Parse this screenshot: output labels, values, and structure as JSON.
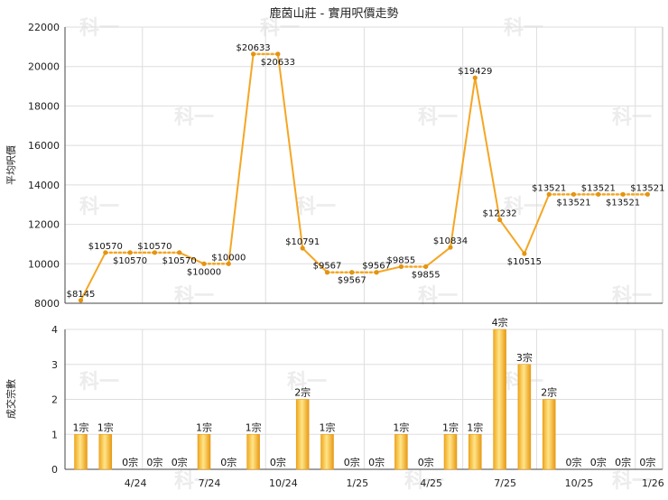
{
  "chart_data": [
    {
      "type": "line",
      "title": "鹿茵山莊 - 實用呎價走勢",
      "ylabel": "平均呎價",
      "ylim": [
        8000,
        22000
      ],
      "yticks": [
        8000,
        10000,
        12000,
        14000,
        16000,
        18000,
        20000,
        22000
      ],
      "x_tick_labels": [
        "4/24",
        "7/24",
        "10/24",
        "1/25",
        "4/25",
        "7/25",
        "10/25",
        "1/26"
      ],
      "grid": true,
      "line_color": "#f5a623",
      "points": [
        {
          "y": 8145,
          "label": "$8145"
        },
        {
          "y": 10570,
          "label": "$10570"
        },
        {
          "y": 10570,
          "label": "$10570"
        },
        {
          "y": 10570,
          "label": "$10570"
        },
        {
          "y": 10570,
          "label": "$10570"
        },
        {
          "y": 10000,
          "label": "$10000"
        },
        {
          "y": 10000,
          "label": "$10000"
        },
        {
          "y": 20633,
          "label": "$20633"
        },
        {
          "y": 20633,
          "label": "$20633"
        },
        {
          "y": 10791,
          "label": "$10791"
        },
        {
          "y": 9567,
          "label": "$9567"
        },
        {
          "y": 9567,
          "label": "$9567"
        },
        {
          "y": 9567,
          "label": "$9567"
        },
        {
          "y": 9855,
          "label": "$9855"
        },
        {
          "y": 9855,
          "label": "$9855"
        },
        {
          "y": 10834,
          "label": "$10834"
        },
        {
          "y": 19429,
          "label": "$19429"
        },
        {
          "y": 12232,
          "label": "$12232"
        },
        {
          "y": 10515,
          "label": "$10515"
        },
        {
          "y": 13521,
          "label": "$13521"
        },
        {
          "y": 13521,
          "label": "$13521"
        },
        {
          "y": 13521,
          "label": "$13521"
        },
        {
          "y": 13521,
          "label": "$13521"
        },
        {
          "y": 13521,
          "label": "$13521"
        }
      ]
    },
    {
      "type": "bar",
      "ylabel": "成交宗數",
      "ylim": [
        0,
        4
      ],
      "yticks": [
        0,
        1,
        2,
        3,
        4
      ],
      "x_tick_labels": [
        "4/24",
        "7/24",
        "10/24",
        "1/25",
        "4/25",
        "7/25",
        "10/25",
        "1/26"
      ],
      "grid": true,
      "bar_color": "#f5a623",
      "values": [
        1,
        1,
        0,
        0,
        0,
        1,
        0,
        1,
        0,
        2,
        1,
        0,
        0,
        1,
        0,
        1,
        1,
        4,
        3,
        2,
        0,
        0,
        0,
        0
      ],
      "labels": [
        "1宗",
        "1宗",
        "0宗",
        "0宗",
        "0宗",
        "1宗",
        "0宗",
        "1宗",
        "0宗",
        "2宗",
        "1宗",
        "0宗",
        "0宗",
        "1宗",
        "0宗",
        "1宗",
        "1宗",
        "4宗",
        "3宗",
        "2宗",
        "0宗",
        "0宗",
        "0宗",
        "0宗"
      ]
    }
  ],
  "watermark": "科一"
}
